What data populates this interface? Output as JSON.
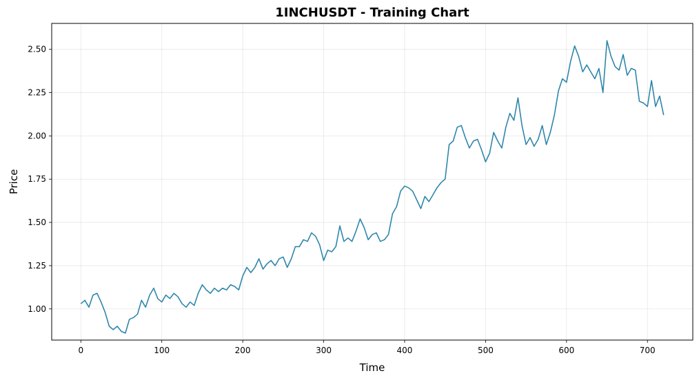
{
  "chart_data": {
    "type": "line",
    "title": "1INCHUSDT - Training Chart",
    "xlabel": "Time",
    "ylabel": "Price",
    "xlim": [
      -36,
      756
    ],
    "ylim": [
      0.82,
      2.65
    ],
    "xticks": [
      0,
      100,
      200,
      300,
      400,
      500,
      600,
      700
    ],
    "yticks": [
      1.0,
      1.25,
      1.5,
      1.75,
      2.0,
      2.25,
      2.5
    ],
    "ytick_labels": [
      "1.00",
      "1.25",
      "1.50",
      "1.75",
      "2.00",
      "2.25",
      "2.50"
    ],
    "grid": true,
    "series": [
      {
        "color": "#2e86ab",
        "x": [
          0,
          5,
          10,
          15,
          20,
          25,
          30,
          35,
          40,
          45,
          50,
          55,
          60,
          65,
          70,
          75,
          80,
          85,
          90,
          95,
          100,
          105,
          110,
          115,
          120,
          125,
          130,
          135,
          140,
          145,
          150,
          155,
          160,
          165,
          170,
          175,
          180,
          185,
          190,
          195,
          200,
          205,
          210,
          215,
          220,
          225,
          230,
          235,
          240,
          245,
          250,
          255,
          260,
          265,
          270,
          275,
          280,
          285,
          290,
          295,
          300,
          305,
          310,
          315,
          320,
          325,
          330,
          335,
          340,
          345,
          350,
          355,
          360,
          365,
          370,
          375,
          380,
          385,
          390,
          395,
          400,
          405,
          410,
          415,
          420,
          425,
          430,
          435,
          440,
          445,
          450,
          455,
          460,
          465,
          470,
          475,
          480,
          485,
          490,
          495,
          500,
          505,
          510,
          515,
          520,
          525,
          530,
          535,
          540,
          545,
          550,
          555,
          560,
          565,
          570,
          575,
          580,
          585,
          590,
          595,
          600,
          605,
          610,
          615,
          620,
          625,
          630,
          635,
          640,
          645,
          650,
          655,
          660,
          665,
          670,
          675,
          680,
          685,
          690,
          695,
          700,
          705,
          710,
          715,
          720
        ],
        "values": [
          1.03,
          1.05,
          1.01,
          1.08,
          1.09,
          1.04,
          0.98,
          0.9,
          0.88,
          0.9,
          0.87,
          0.86,
          0.94,
          0.95,
          0.97,
          1.05,
          1.01,
          1.08,
          1.12,
          1.06,
          1.04,
          1.08,
          1.06,
          1.09,
          1.07,
          1.03,
          1.01,
          1.04,
          1.02,
          1.09,
          1.14,
          1.11,
          1.09,
          1.12,
          1.1,
          1.12,
          1.11,
          1.14,
          1.13,
          1.11,
          1.19,
          1.24,
          1.21,
          1.24,
          1.29,
          1.23,
          1.26,
          1.28,
          1.25,
          1.29,
          1.3,
          1.24,
          1.29,
          1.36,
          1.36,
          1.4,
          1.39,
          1.44,
          1.42,
          1.37,
          1.28,
          1.34,
          1.33,
          1.36,
          1.48,
          1.39,
          1.41,
          1.39,
          1.45,
          1.52,
          1.47,
          1.4,
          1.43,
          1.44,
          1.39,
          1.4,
          1.43,
          1.55,
          1.59,
          1.68,
          1.71,
          1.7,
          1.68,
          1.63,
          1.58,
          1.65,
          1.62,
          1.66,
          1.7,
          1.73,
          1.75,
          1.95,
          1.97,
          2.05,
          2.06,
          1.99,
          1.93,
          1.97,
          1.98,
          1.92,
          1.85,
          1.9,
          2.02,
          1.97,
          1.93,
          2.05,
          2.13,
          2.09,
          2.22,
          2.06,
          1.95,
          1.99,
          1.94,
          1.98,
          2.06,
          1.95,
          2.02,
          2.12,
          2.26,
          2.33,
          2.31,
          2.43,
          2.52,
          2.46,
          2.37,
          2.41,
          2.37,
          2.33,
          2.39,
          2.25,
          2.55,
          2.46,
          2.4,
          2.38,
          2.47,
          2.35,
          2.39,
          2.38,
          2.2,
          2.19,
          2.17,
          2.32,
          2.17,
          2.23,
          2.12
        ]
      }
    ]
  }
}
